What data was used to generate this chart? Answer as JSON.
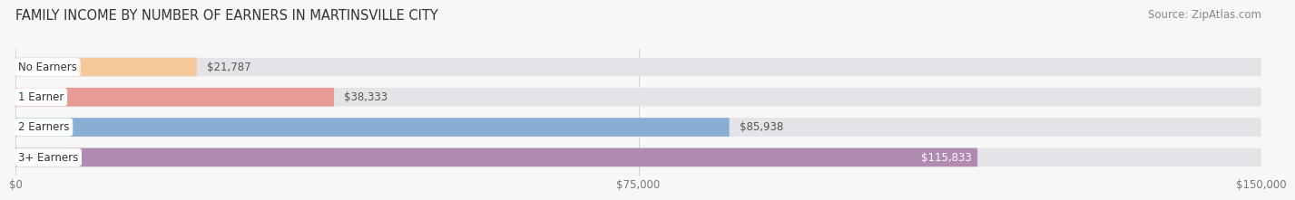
{
  "title": "FAMILY INCOME BY NUMBER OF EARNERS IN MARTINSVILLE CITY",
  "source": "Source: ZipAtlas.com",
  "categories": [
    "No Earners",
    "1 Earner",
    "2 Earners",
    "3+ Earners"
  ],
  "values": [
    21787,
    38333,
    85938,
    115833
  ],
  "labels": [
    "$21,787",
    "$38,333",
    "$85,938",
    "$115,833"
  ],
  "bar_colors": [
    "#f5c99a",
    "#e89b95",
    "#89aed4",
    "#b08ab0"
  ],
  "bar_bg_color": "#e4e4e8",
  "label_colors": [
    "#555555",
    "#555555",
    "#555555",
    "#ffffff"
  ],
  "xlim": [
    0,
    150000
  ],
  "xticklabels": [
    "$0",
    "$75,000",
    "$150,000"
  ],
  "title_fontsize": 10.5,
  "source_fontsize": 8.5,
  "label_fontsize": 8.5,
  "tick_fontsize": 8.5,
  "category_fontsize": 8.5,
  "background_color": "#f7f7f7",
  "bar_height": 0.62
}
